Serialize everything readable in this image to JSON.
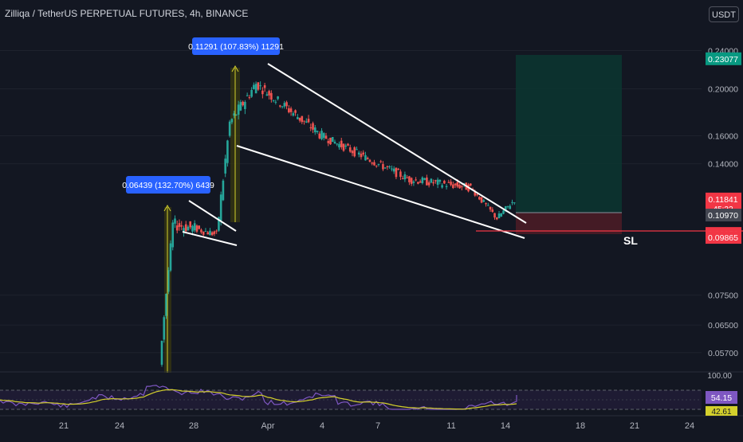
{
  "header": {
    "title": "Zilliqa / TetherUS PERPETUAL FUTURES, 4h, BINANCE",
    "currency_button": "USDT"
  },
  "price_axis": {
    "ticks": [
      "0.24000",
      "0.20000",
      "0.16000",
      "0.14000",
      "0.07500",
      "0.06500",
      "0.05700"
    ],
    "badges": [
      {
        "label": "0.23077",
        "value": 0.23077,
        "color": "#089981"
      },
      {
        "label": "0.11841",
        "value": 0.11841,
        "color": "#f23645",
        "countdown": "45:22"
      },
      {
        "label": "0.10970",
        "value": 0.1097,
        "color": "#434651"
      },
      {
        "label": "0.10050",
        "value": 0.1005,
        "color": "#f23645"
      },
      {
        "label": "0.09865",
        "value": 0.09865,
        "color": "#f23645"
      }
    ]
  },
  "time_axis": {
    "ticks": [
      "21",
      "24",
      "28",
      "Apr",
      "4",
      "7",
      "11",
      "14",
      "18",
      "21",
      "24"
    ]
  },
  "annotations": {
    "measure_1": "0.06439 (132.70%) 6439",
    "measure_2": "0.11291 (107.83%) 11291",
    "sl_label": "SL"
  },
  "rsi": {
    "scale_top": "100.00",
    "value": "54.15",
    "ma_value": "42.61",
    "colors": {
      "rsi": "#7e57c2",
      "ma": "#d4d02c"
    }
  },
  "colors": {
    "up": "#26a69a",
    "down": "#ef5350",
    "accent": "#2962ff",
    "target_zone": "#0d3b33",
    "stop_zone": "#4a1a22"
  },
  "chart_data": {
    "type": "candlestick",
    "title": "Zilliqa / TetherUS PERPETUAL FUTURES, 4h, BINANCE",
    "xlabel": "",
    "ylabel": "",
    "ylim": [
      0.053,
      0.245
    ],
    "y_scale": "log",
    "x_ticks": [
      "21",
      "24",
      "28",
      "Apr",
      "4",
      "7",
      "11",
      "14",
      "18",
      "21",
      "24"
    ],
    "y_ticks": [
      0.24,
      0.2,
      0.16,
      0.14,
      0.075,
      0.065,
      0.057
    ],
    "key_levels": {
      "entry": 0.1097,
      "target": 0.23077,
      "stop": 0.1005,
      "last": 0.11841
    },
    "phases": [
      {
        "bars": 38,
        "start": 0.0545,
        "end": 0.0545,
        "vol": 0.0
      },
      {
        "bars": 6,
        "start": 0.0545,
        "end": 0.105,
        "vol": 0.02
      },
      {
        "bars": 10,
        "start": 0.105,
        "end": 0.103,
        "vol": 0.03
      },
      {
        "bars": 10,
        "start": 0.103,
        "end": 0.1,
        "vol": 0.02
      },
      {
        "bars": 6,
        "start": 0.1,
        "end": 0.17,
        "vol": 0.03
      },
      {
        "bars": 12,
        "start": 0.17,
        "end": 0.205,
        "vol": 0.03
      },
      {
        "bars": 30,
        "start": 0.205,
        "end": 0.16,
        "vol": 0.025
      },
      {
        "bars": 40,
        "start": 0.16,
        "end": 0.13,
        "vol": 0.02
      },
      {
        "bars": 28,
        "start": 0.13,
        "end": 0.125,
        "vol": 0.02
      },
      {
        "bars": 12,
        "start": 0.125,
        "end": 0.108,
        "vol": 0.015
      },
      {
        "bars": 8,
        "start": 0.108,
        "end": 0.118,
        "vol": 0.015
      }
    ]
  }
}
